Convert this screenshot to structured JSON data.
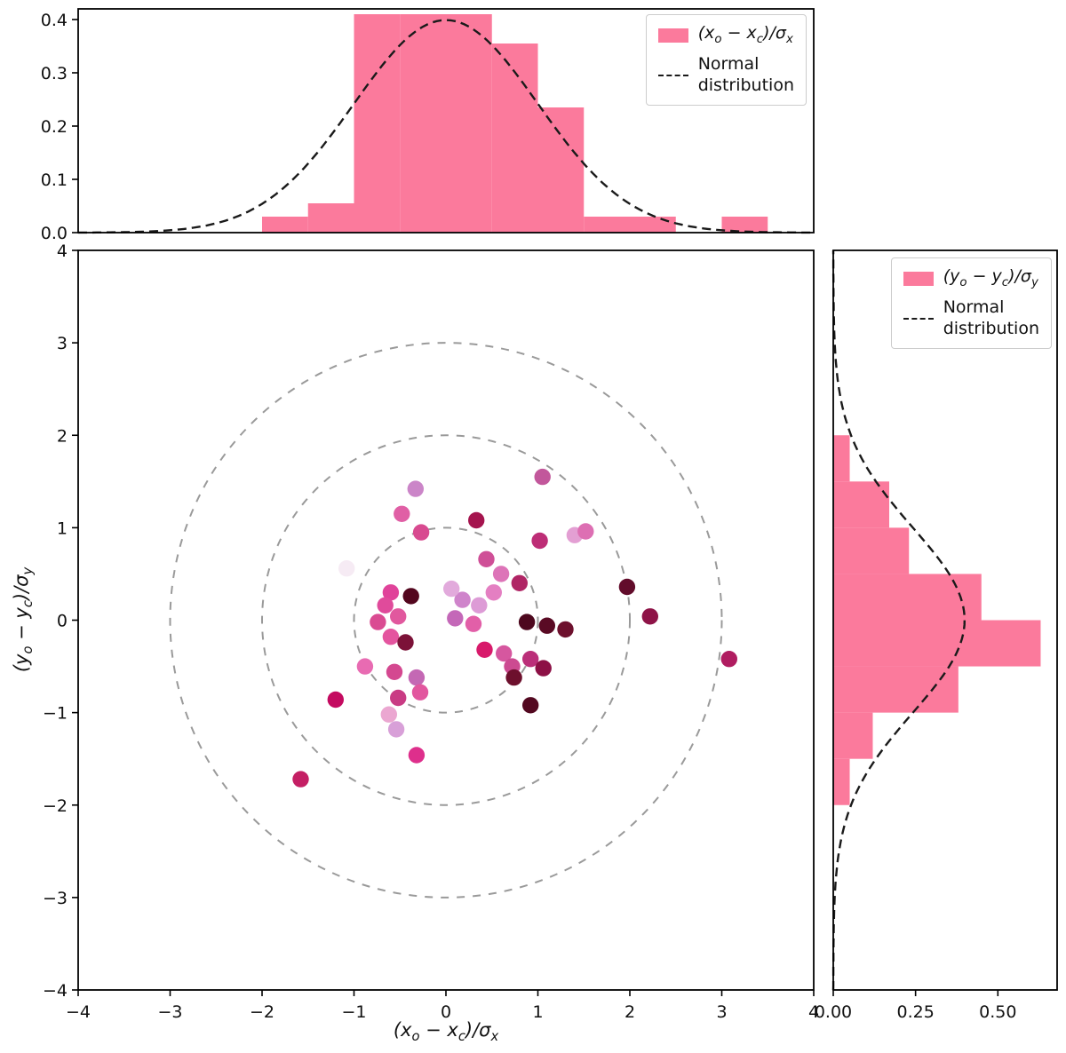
{
  "colors": {
    "background": "#ffffff",
    "hist_fill": "#fb7a9c",
    "curve": "#1a1a1a",
    "circle": "#9a9a9a",
    "spine": "#000000",
    "tick_text": "#111111"
  },
  "labels": {
    "xlabel": "(x_o − x_c)/σ_x",
    "ylabel": "(y_o − y_c)/σ_y"
  },
  "chart_data": [
    {
      "id": "x-residual-histogram",
      "type": "bar",
      "orientation": "vertical",
      "xlim": [
        -4,
        4
      ],
      "ylim": [
        0,
        0.42
      ],
      "bin_edges": [
        -2.0,
        -1.5,
        -1.0,
        -0.5,
        0.0,
        0.5,
        1.0,
        1.5,
        2.0,
        2.5,
        3.0,
        3.5
      ],
      "densities": [
        0.03,
        0.055,
        0.41,
        0.41,
        0.41,
        0.355,
        0.235,
        0.03,
        0.03,
        0.0,
        0.03
      ],
      "normal_curve": {
        "mean": 0,
        "sigma": 1,
        "peak_density": 0.3989
      },
      "ytick_vals": [
        0,
        0.1,
        0.2,
        0.3,
        0.4
      ],
      "ytick_labels": [
        "0.0",
        "0.1",
        "0.2",
        "0.3",
        "0.4"
      ],
      "legend": {
        "patch_label": "(x_o − x_c)/σ_x",
        "line_label": "Normal\n distribution",
        "position": "upper right"
      },
      "grid": false
    },
    {
      "id": "residual-scatter",
      "type": "scatter",
      "xlabel": "(x_o − x_c)/σ_x",
      "ylabel": "(y_o − y_c)/σ_y",
      "xlim": [
        -4,
        4
      ],
      "ylim": [
        -4,
        4
      ],
      "xtick_vals": [
        -4,
        -3,
        -2,
        -1,
        0,
        1,
        2,
        3,
        4
      ],
      "xtick_labels": [
        "−4",
        "−3",
        "−2",
        "−1",
        "0",
        "1",
        "2",
        "3",
        "4"
      ],
      "ytick_vals": [
        -4,
        -3,
        -2,
        -1,
        0,
        1,
        2,
        3,
        4
      ],
      "ytick_labels": [
        "−4",
        "−3",
        "−2",
        "−1",
        "0",
        "1",
        "2",
        "3",
        "4"
      ],
      "guide_circles": [
        1,
        2,
        3
      ],
      "grid": false,
      "points": [
        [
          1.05,
          1.55,
          "#c2579b"
        ],
        [
          -0.33,
          1.42,
          "#cb85c8"
        ],
        [
          -0.48,
          1.15,
          "#e05fa5"
        ],
        [
          0.33,
          1.08,
          "#a5144e"
        ],
        [
          -0.27,
          0.95,
          "#d84a90"
        ],
        [
          1.02,
          0.86,
          "#bd2d76"
        ],
        [
          1.4,
          0.92,
          "#e39fd3"
        ],
        [
          1.52,
          0.96,
          "#dd6fb3"
        ],
        [
          0.44,
          0.66,
          "#cf4f97"
        ],
        [
          0.6,
          0.5,
          "#dd74b8"
        ],
        [
          0.8,
          0.4,
          "#b02565"
        ],
        [
          -1.08,
          0.56,
          "#f6ebf4"
        ],
        [
          1.97,
          0.36,
          "#620c2b"
        ],
        [
          2.22,
          0.04,
          "#8e1347"
        ],
        [
          -0.6,
          0.3,
          "#e0439a"
        ],
        [
          -0.38,
          0.26,
          "#53061e"
        ],
        [
          -0.66,
          0.16,
          "#e04b9b"
        ],
        [
          0.18,
          0.22,
          "#cf84cb"
        ],
        [
          0.36,
          0.16,
          "#dd9bd6"
        ],
        [
          0.52,
          0.3,
          "#e47fc2"
        ],
        [
          0.06,
          0.34,
          "#e2aadc"
        ],
        [
          0.1,
          0.02,
          "#c468b8"
        ],
        [
          0.3,
          -0.04,
          "#e25fa8"
        ],
        [
          0.88,
          -0.02,
          "#4d081e"
        ],
        [
          1.1,
          -0.06,
          "#5a0a24"
        ],
        [
          1.3,
          -0.1,
          "#6d102d"
        ],
        [
          -0.52,
          0.04,
          "#e1589e"
        ],
        [
          -0.74,
          -0.02,
          "#da4b92"
        ],
        [
          -0.6,
          -0.18,
          "#e4559f"
        ],
        [
          -0.44,
          -0.24,
          "#7c1238"
        ],
        [
          0.42,
          -0.32,
          "#d81a6b"
        ],
        [
          0.63,
          -0.36,
          "#d6579f"
        ],
        [
          0.92,
          -0.42,
          "#bb2f79"
        ],
        [
          1.06,
          -0.52,
          "#8c1045"
        ],
        [
          0.72,
          -0.5,
          "#cc4a91"
        ],
        [
          3.08,
          -0.42,
          "#b01c60"
        ],
        [
          -0.88,
          -0.5,
          "#e86bb2"
        ],
        [
          -0.56,
          -0.56,
          "#d44890"
        ],
        [
          -0.32,
          -0.62,
          "#c468b4"
        ],
        [
          -0.28,
          -0.78,
          "#e2579f"
        ],
        [
          -0.52,
          -0.84,
          "#c93b84"
        ],
        [
          0.74,
          -0.62,
          "#6d102d"
        ],
        [
          0.92,
          -0.92,
          "#530820"
        ],
        [
          -1.2,
          -0.86,
          "#c40a60"
        ],
        [
          -0.62,
          -1.02,
          "#eba7d1"
        ],
        [
          -0.54,
          -1.18,
          "#d8a0d8"
        ],
        [
          -0.32,
          -1.46,
          "#de2f8c"
        ],
        [
          -1.58,
          -1.72,
          "#c41f64"
        ]
      ]
    },
    {
      "id": "y-residual-histogram",
      "type": "bar",
      "orientation": "horizontal",
      "xlim": [
        0,
        0.68
      ],
      "ylim": [
        -4,
        4
      ],
      "bin_edges": [
        -2.0,
        -1.5,
        -1.0,
        -0.5,
        0.0,
        0.5,
        1.0,
        1.5,
        2.0
      ],
      "densities": [
        0.05,
        0.12,
        0.38,
        0.63,
        0.45,
        0.23,
        0.17,
        0.05
      ],
      "normal_curve": {
        "mean": 0,
        "sigma": 1,
        "peak_density": 0.3989
      },
      "xtick_vals": [
        0,
        0.25,
        0.5
      ],
      "xtick_labels": [
        "0.00",
        "0.25",
        "0.50"
      ],
      "legend": {
        "patch_label": "(y_o − y_c)/σ_y",
        "line_label": "Normal\n distribution",
        "position": "upper right"
      },
      "grid": false
    }
  ]
}
